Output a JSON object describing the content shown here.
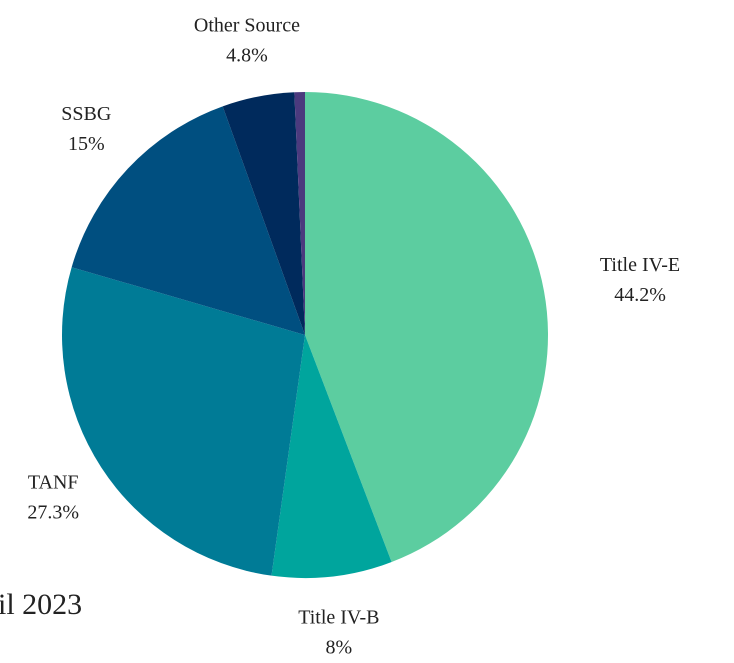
{
  "chart_data": {
    "type": "pie",
    "categories": [
      "Title IV-E",
      "Title IV-B",
      "TANF",
      "SSBG",
      "Other Source",
      null
    ],
    "values": [
      44.2,
      8,
      27.3,
      15,
      4.8,
      0.7
    ],
    "value_labels": [
      "44.2%",
      "8%",
      "27.3%",
      "15%",
      "4.8%",
      null
    ],
    "colors": [
      "#5ccda0",
      "#00a59d",
      "#007b96",
      "#004f80",
      "#002a5c",
      "#4b3a7e"
    ],
    "annotation": "il 2023"
  }
}
